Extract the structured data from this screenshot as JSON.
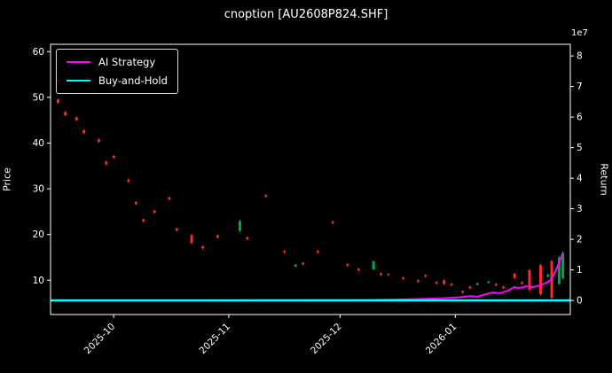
{
  "chart_data": {
    "type": "candlestick+line",
    "title": "cnoption [AU2608P824.SHF]",
    "left_axis": {
      "label": "Price",
      "ticks": [
        10,
        20,
        30,
        40,
        50,
        60
      ],
      "range": [
        2.5,
        61.6
      ]
    },
    "right_axis": {
      "label": "Return",
      "ticks": [
        0,
        1,
        2,
        3,
        4,
        5,
        6,
        7,
        8
      ],
      "range": [
        -0.46,
        8.38
      ],
      "offset_text": "1e7",
      "scale": 10000000
    },
    "x_axis": {
      "range": [
        "2025-09-14",
        "2026-02-01"
      ],
      "ticks": [
        {
          "label": "2025-10",
          "date": "2025-10-01"
        },
        {
          "label": "2025-11",
          "date": "2025-11-01"
        },
        {
          "label": "2025-12",
          "date": "2025-12-01"
        },
        {
          "label": "2026-01",
          "date": "2026-01-01"
        }
      ]
    },
    "legend": [
      {
        "label": "AI Strategy",
        "color": "#ff00ff"
      },
      {
        "label": "Buy-and-Hold",
        "color": "#00ffff"
      }
    ],
    "colors": {
      "up": "#00a650",
      "down": "#ff2a2a",
      "background": "#000000",
      "text": "#ffffff",
      "spine": "#ffffff"
    },
    "candles": [
      [
        "2025-09-16",
        49.5,
        49.8,
        48.6,
        48.8
      ],
      [
        "2025-09-18",
        46.8,
        47.0,
        45.9,
        46.1
      ],
      [
        "2025-09-21",
        45.6,
        45.8,
        44.8,
        45.0
      ],
      [
        "2025-09-23",
        42.8,
        43.0,
        41.9,
        42.2
      ],
      [
        "2025-09-27",
        40.8,
        41.0,
        40.0,
        40.3
      ],
      [
        "2025-09-29",
        35.9,
        36.2,
        35.1,
        35.4
      ],
      [
        "2025-10-01",
        37.2,
        37.4,
        36.5,
        36.8
      ],
      [
        "2025-10-05",
        32.0,
        32.2,
        31.3,
        31.6
      ],
      [
        "2025-10-07",
        27.1,
        27.3,
        26.4,
        26.7
      ],
      [
        "2025-10-09",
        23.3,
        23.5,
        22.6,
        22.9
      ],
      [
        "2025-10-12",
        25.2,
        25.4,
        24.5,
        24.8
      ],
      [
        "2025-10-16",
        28.1,
        28.3,
        27.4,
        27.7
      ],
      [
        "2025-10-18",
        21.3,
        21.5,
        20.6,
        20.9
      ],
      [
        "2025-10-22",
        19.9,
        20.1,
        17.8,
        18.2
      ],
      [
        "2025-10-25",
        17.4,
        17.6,
        16.7,
        17.0
      ],
      [
        "2025-10-29",
        19.8,
        20.0,
        19.1,
        19.4
      ],
      [
        "2025-11-04",
        20.8,
        23.2,
        20.5,
        22.9
      ],
      [
        "2025-11-06",
        19.4,
        19.6,
        18.7,
        19.0
      ],
      [
        "2025-11-11",
        28.6,
        28.8,
        28.0,
        28.3
      ],
      [
        "2025-11-16",
        16.4,
        16.6,
        15.8,
        16.1
      ],
      [
        "2025-11-19",
        13.0,
        13.6,
        12.9,
        13.4
      ],
      [
        "2025-11-21",
        13.8,
        14.0,
        13.2,
        13.5
      ],
      [
        "2025-11-25",
        16.4,
        16.6,
        15.8,
        16.1
      ],
      [
        "2025-11-29",
        22.8,
        23.0,
        22.2,
        22.5
      ],
      [
        "2025-12-03",
        13.5,
        13.7,
        12.9,
        13.2
      ],
      [
        "2025-12-06",
        12.5,
        12.7,
        11.9,
        12.2
      ],
      [
        "2025-12-10",
        12.4,
        14.3,
        12.2,
        14.1
      ],
      [
        "2025-12-12",
        11.5,
        11.7,
        10.9,
        11.2
      ],
      [
        "2025-12-14",
        11.4,
        11.6,
        10.9,
        11.2
      ],
      [
        "2025-12-18",
        10.6,
        10.8,
        10.0,
        10.3
      ],
      [
        "2025-12-22",
        10.0,
        10.2,
        9.4,
        9.7
      ],
      [
        "2025-12-24",
        11.1,
        11.3,
        10.5,
        10.8
      ],
      [
        "2025-12-27",
        9.6,
        9.8,
        9.0,
        9.3
      ],
      [
        "2025-12-29",
        10.0,
        10.2,
        8.9,
        9.2
      ],
      [
        "2025-12-31",
        9.2,
        9.4,
        8.6,
        8.9
      ],
      [
        "2026-01-03",
        7.6,
        7.8,
        7.0,
        7.3
      ],
      [
        "2026-01-05",
        8.6,
        8.8,
        8.0,
        8.3
      ],
      [
        "2026-01-07",
        9.0,
        9.5,
        8.9,
        9.3
      ],
      [
        "2026-01-10",
        9.4,
        9.9,
        9.3,
        9.7
      ],
      [
        "2026-01-12",
        9.2,
        9.4,
        8.6,
        8.9
      ],
      [
        "2026-01-14",
        8.6,
        8.8,
        8.0,
        8.3
      ],
      [
        "2026-01-17",
        11.4,
        11.6,
        10.2,
        10.5
      ],
      [
        "2026-01-19",
        9.6,
        9.8,
        9.0,
        9.3
      ],
      [
        "2026-01-21",
        12.2,
        12.5,
        7.5,
        7.9
      ],
      [
        "2026-01-24",
        13.3,
        13.6,
        6.6,
        7.0
      ],
      [
        "2026-01-26",
        10.8,
        11.4,
        10.6,
        11.2
      ],
      [
        "2026-01-27",
        14.2,
        14.5,
        5.8,
        6.2
      ],
      [
        "2026-01-29",
        9.2,
        15.3,
        9.0,
        15.0
      ],
      [
        "2026-01-30",
        10.5,
        16.3,
        10.2,
        16.0
      ]
    ],
    "ai_strategy": {
      "name": "AI Strategy",
      "color": "#ff00ff",
      "points": [
        [
          "2025-09-16",
          0.0
        ],
        [
          "2025-10-15",
          0.0
        ],
        [
          "2025-11-15",
          0.01
        ],
        [
          "2025-12-10",
          0.02
        ],
        [
          "2025-12-20",
          0.04
        ],
        [
          "2025-12-28",
          0.07
        ],
        [
          "2026-01-02",
          0.1
        ],
        [
          "2026-01-05",
          0.14
        ],
        [
          "2026-01-07",
          0.12
        ],
        [
          "2026-01-09",
          0.2
        ],
        [
          "2026-01-11",
          0.26
        ],
        [
          "2026-01-13",
          0.24
        ],
        [
          "2026-01-15",
          0.31
        ],
        [
          "2026-01-17",
          0.44
        ],
        [
          "2026-01-18",
          0.4
        ],
        [
          "2026-01-20",
          0.46
        ],
        [
          "2026-01-22",
          0.44
        ],
        [
          "2026-01-24",
          0.5
        ],
        [
          "2026-01-26",
          0.6
        ],
        [
          "2026-01-27",
          0.72
        ],
        [
          "2026-01-28",
          0.95
        ],
        [
          "2026-01-29",
          1.25
        ],
        [
          "2026-01-30",
          1.55
        ]
      ]
    },
    "buy_and_hold": {
      "name": "Buy-and-Hold",
      "color": "#00ffff",
      "value": 0.0
    }
  }
}
